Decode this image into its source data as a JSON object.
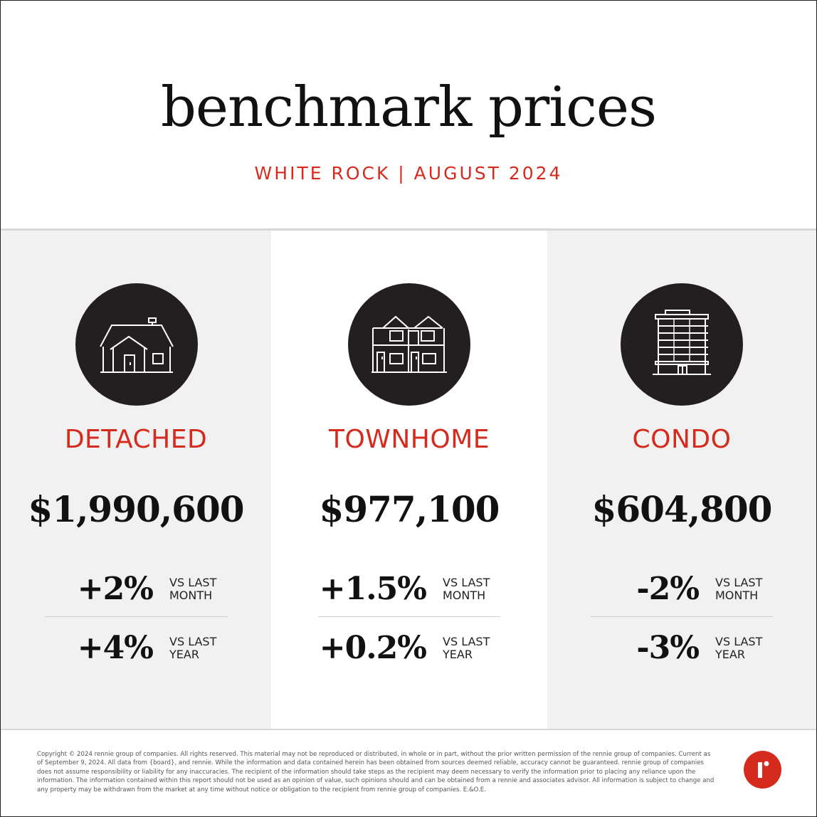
{
  "colors": {
    "accent": "#d52b1e",
    "icon_circle": "#231f20",
    "panel_gray": "#f1f1f1"
  },
  "header": {
    "title": "benchmark prices",
    "subtitle": "WHITE ROCK | AUGUST 2024"
  },
  "columns": [
    {
      "icon": "detached-house-icon",
      "type": "DETACHED",
      "price": "$1,990,600",
      "stats": [
        {
          "value": "+2%",
          "label_line1": "VS LAST",
          "label_line2": "MONTH"
        },
        {
          "value": "+4%",
          "label_line1": "VS LAST",
          "label_line2": "YEAR"
        }
      ]
    },
    {
      "icon": "townhome-icon",
      "type": "TOWNHOME",
      "price": "$977,100",
      "stats": [
        {
          "value": "+1.5%",
          "label_line1": "VS LAST",
          "label_line2": "MONTH"
        },
        {
          "value": "+0.2%",
          "label_line1": "VS LAST",
          "label_line2": "YEAR"
        }
      ]
    },
    {
      "icon": "condo-building-icon",
      "type": "CONDO",
      "price": "$604,800",
      "stats": [
        {
          "value": "-2%",
          "label_line1": "VS LAST",
          "label_line2": "MONTH"
        },
        {
          "value": "-3%",
          "label_line1": "VS LAST",
          "label_line2": "YEAR"
        }
      ]
    }
  ],
  "footer": {
    "disclaimer": "Copyright © 2024 rennie group of companies. All rights reserved. This material may not be reproduced or distributed, in whole or in part, without the prior written permission of the rennie group of companies. Current as of September 9, 2024. All data from {board}, and rennie. While the information and data contained herein has been obtained from sources deemed reliable, accuracy cannot be guaranteed. rennie group of companies does not assume responsibility or liability for any inaccuracies. The recipient of the information should take steps as the recipient may deem necessary to verify the information prior to placing any reliance upon the information. The information contained within this report should not be used as an opinion of value, such opinions should and can be obtained from a rennie and associates advisor. All information is subject to change and any property may be withdrawn from the market at any time without notice or obligation to the recipient from rennie group of companies. E.&O.E.",
    "logo_icon": "rennie-logo-icon"
  }
}
